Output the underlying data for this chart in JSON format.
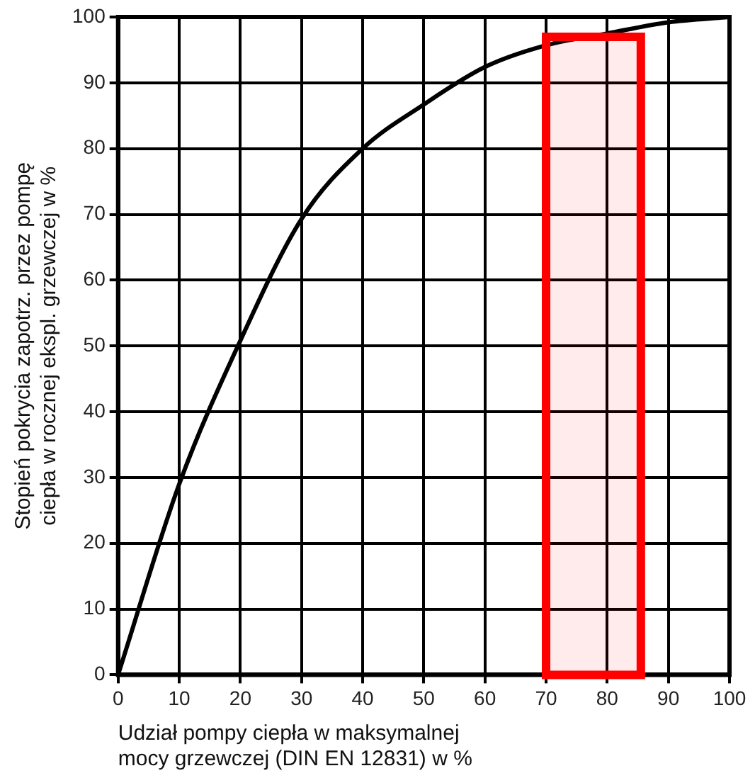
{
  "chart_data": {
    "type": "line",
    "xlabel": "Udział pompy ciepła w maksymalnej\nmocy grzewczej (DIN EN 12831) w %",
    "ylabel": "Stopień pokrycia zapotrz. przez pompę\nciepła w rocznej ekspl. grzewczej w %",
    "x": [
      0,
      10,
      20,
      30,
      40,
      50,
      60,
      70,
      80,
      90,
      100
    ],
    "series": [
      {
        "color": "#000000",
        "values": [
          0,
          29,
          50.8,
          69.3,
          80,
          86.7,
          92.4,
          95.7,
          97.5,
          99.2,
          100
        ]
      }
    ],
    "xlim": [
      0,
      100
    ],
    "ylim": [
      0,
      100
    ],
    "xticks": [
      0,
      10,
      20,
      30,
      40,
      50,
      60,
      70,
      80,
      90,
      100
    ],
    "yticks": [
      0,
      10,
      20,
      30,
      40,
      50,
      60,
      70,
      80,
      90,
      100
    ],
    "bands": [
      {
        "axis": "x",
        "from": 70,
        "to": 85.5,
        "color": "#ff0000"
      }
    ],
    "grid": true,
    "marker": "none",
    "line_style": "solid"
  }
}
